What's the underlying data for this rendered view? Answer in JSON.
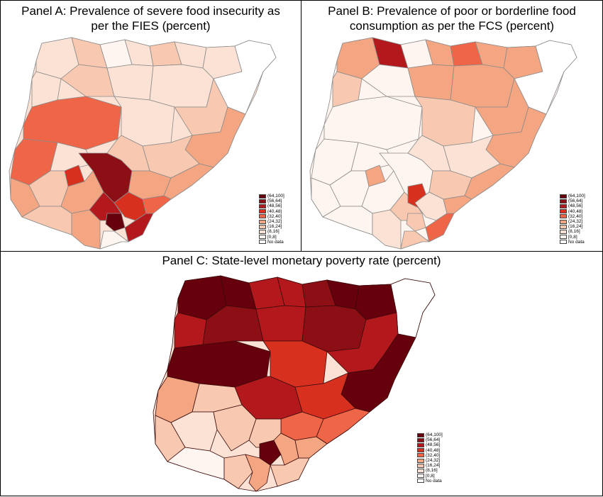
{
  "panels": {
    "a": {
      "title_line1": "Panel A: Prevalence of severe food insecurity as",
      "title_line2": "per the FIES (percent)"
    },
    "b": {
      "title_line1": "Panel B: Prevalence of poor or borderline food",
      "title_line2": "consumption as per the FCS (percent)"
    },
    "c": {
      "title": "Panel C: State-level monetary poverty rate (percent)"
    }
  },
  "legend": {
    "items": [
      {
        "label": "(64,100]",
        "color": "#67000d"
      },
      {
        "label": "(56,64]",
        "color": "#8b0f14"
      },
      {
        "label": "(48,56]",
        "color": "#b3181c"
      },
      {
        "label": "(40,48]",
        "color": "#d7301f"
      },
      {
        "label": "(32,40]",
        "color": "#ef6548"
      },
      {
        "label": "(24,32]",
        "color": "#f4a582"
      },
      {
        "label": "(16,24]",
        "color": "#f8c9b0"
      },
      {
        "label": "(8,16]",
        "color": "#fbe2d4"
      },
      {
        "label": "[0,8]",
        "color": "#fff5f0"
      },
      {
        "label": "No data",
        "color": "#ffffff"
      }
    ]
  }
}
